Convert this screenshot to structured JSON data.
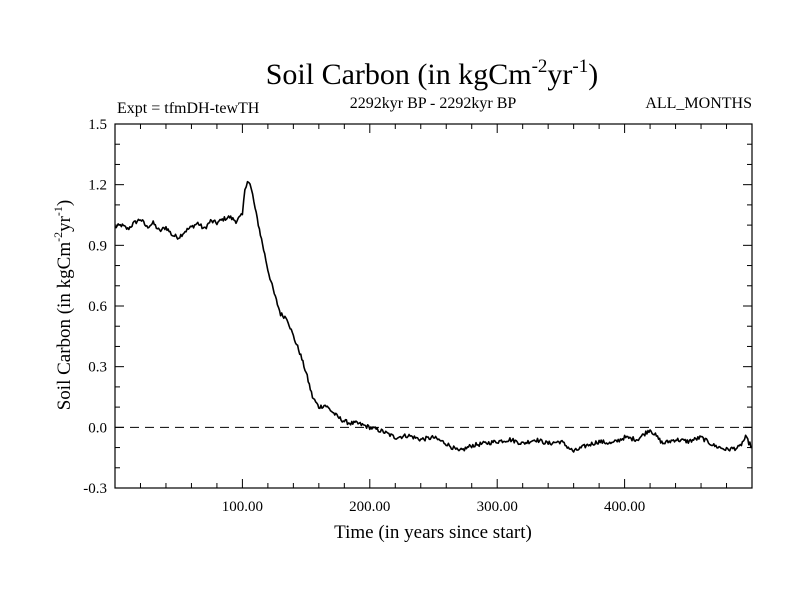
{
  "header": {
    "title_main": "Soil Carbon (in kgCm",
    "title_sup1": "-2",
    "title_mid": "yr",
    "title_sup2": "-1",
    "title_end": ")",
    "experiment": "Expt = tfmDH-tewTH",
    "period": "2292kyr BP - 2292kyr BP",
    "season": "ALL_MONTHS"
  },
  "axes": {
    "xlabel": "Time (in years since start)",
    "ylabel_main": "Soil Carbon (in kgCm",
    "ylabel_sup1": "-2",
    "ylabel_mid": "yr",
    "ylabel_sup2": "-1",
    "ylabel_end": ")"
  },
  "chart_data": {
    "type": "line",
    "title": "Soil Carbon (in kgCm-2yr-1)",
    "xlabel": "Time (in years since start)",
    "ylabel": "Soil Carbon (in kgCm-2yr-1)",
    "xlim": [
      0,
      500
    ],
    "ylim": [
      -0.3,
      1.5
    ],
    "xticks": [
      100,
      200,
      300,
      400
    ],
    "xtick_labels": [
      "100.00",
      "200.00",
      "300.00",
      "400.00"
    ],
    "yticks": [
      -0.3,
      0.0,
      0.3,
      0.6,
      0.9,
      1.2,
      1.5
    ],
    "ytick_labels": [
      "-0.3",
      "0.0",
      "0.3",
      "0.6",
      "0.9",
      "1.2",
      "1.5"
    ],
    "reference_line": {
      "y": 0.0,
      "style": "dashed"
    },
    "series": [
      {
        "name": "Soil Carbon",
        "x": [
          0,
          5,
          10,
          15,
          20,
          25,
          30,
          35,
          40,
          45,
          50,
          55,
          60,
          65,
          70,
          75,
          80,
          85,
          90,
          95,
          100,
          102,
          104,
          106,
          108,
          110,
          115,
          120,
          125,
          130,
          135,
          140,
          145,
          150,
          155,
          160,
          165,
          170,
          175,
          180,
          185,
          190,
          195,
          200,
          210,
          220,
          230,
          240,
          250,
          260,
          270,
          280,
          290,
          300,
          310,
          320,
          330,
          340,
          350,
          360,
          370,
          380,
          390,
          400,
          410,
          420,
          430,
          440,
          450,
          460,
          470,
          480,
          490,
          495,
          500
        ],
        "y": [
          0.99,
          1.0,
          0.98,
          1.01,
          1.03,
          0.99,
          1.01,
          0.97,
          0.99,
          0.95,
          0.94,
          0.97,
          0.99,
          1.01,
          0.98,
          1.02,
          1.01,
          1.03,
          1.04,
          1.02,
          1.05,
          1.18,
          1.22,
          1.2,
          1.15,
          1.08,
          0.93,
          0.78,
          0.66,
          0.56,
          0.54,
          0.45,
          0.37,
          0.27,
          0.15,
          0.1,
          0.11,
          0.08,
          0.05,
          0.03,
          0.02,
          0.02,
          0.01,
          0.0,
          -0.02,
          -0.05,
          -0.04,
          -0.06,
          -0.05,
          -0.08,
          -0.12,
          -0.09,
          -0.08,
          -0.07,
          -0.06,
          -0.08,
          -0.06,
          -0.08,
          -0.07,
          -0.12,
          -0.09,
          -0.07,
          -0.08,
          -0.05,
          -0.06,
          -0.01,
          -0.08,
          -0.06,
          -0.07,
          -0.05,
          -0.09,
          -0.11,
          -0.1,
          -0.05,
          -0.1
        ]
      }
    ]
  }
}
